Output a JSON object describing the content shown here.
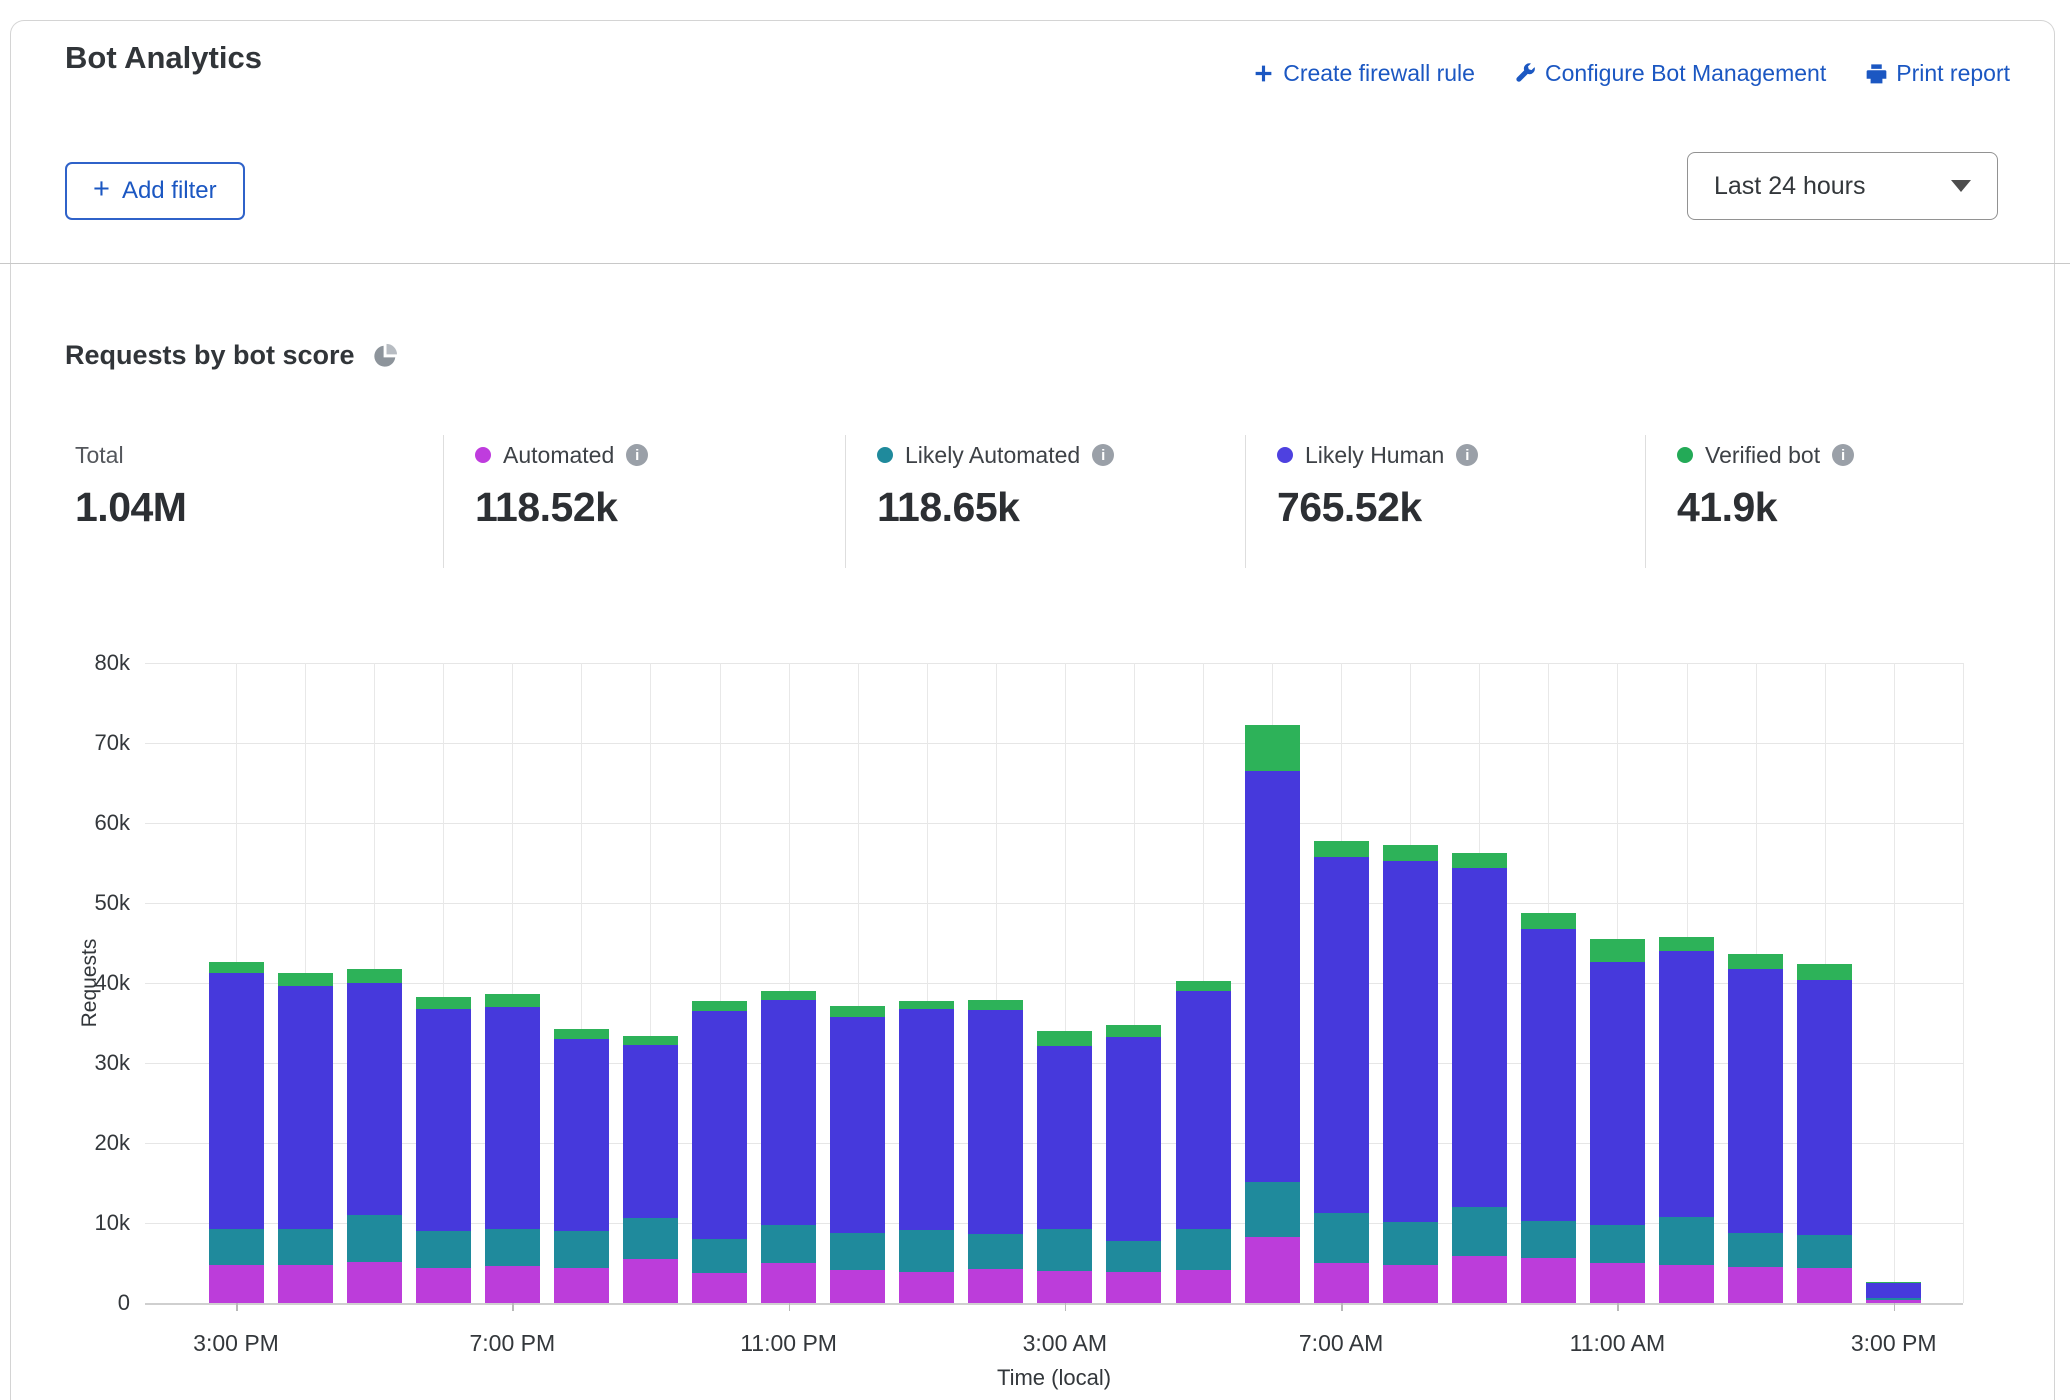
{
  "header": {
    "title": "Bot Analytics",
    "links": [
      {
        "label": "Create firewall rule",
        "icon": "plus-icon"
      },
      {
        "label": "Configure Bot Management",
        "icon": "wrench-icon"
      },
      {
        "label": "Print report",
        "icon": "printer-icon"
      }
    ],
    "link_color": "#1b57c2"
  },
  "filters": {
    "add_filter_label": "Add filter",
    "time_range_value": "Last 24 hours"
  },
  "section": {
    "title": "Requests by bot score",
    "icon": "pie-chart-icon"
  },
  "stats": {
    "total_label": "Total",
    "total_value": "1.04M",
    "series": [
      {
        "key": "automated",
        "label": "Automated",
        "value": "118.52k",
        "color": "#bf3cde"
      },
      {
        "key": "likely-automated",
        "label": "Likely Automated",
        "value": "118.65k",
        "color": "#1f8a9c"
      },
      {
        "key": "likely-human",
        "label": "Likely Human",
        "value": "765.52k",
        "color": "#4e41e0"
      },
      {
        "key": "verified-bot",
        "label": "Verified bot",
        "value": "41.9k",
        "color": "#23aa57"
      }
    ]
  },
  "chart_data": {
    "type": "bar",
    "stacked": true,
    "title": "Requests by bot score",
    "xlabel": "Time (local)",
    "ylabel": "Requests",
    "unit": "thousands of requests",
    "ylim": [
      0,
      80000
    ],
    "ytick_labels": [
      "0",
      "10k",
      "20k",
      "30k",
      "40k",
      "50k",
      "60k",
      "70k",
      "80k"
    ],
    "grid": true,
    "categories": [
      "3:00 PM",
      "4:00 PM",
      "5:00 PM",
      "6:00 PM",
      "7:00 PM",
      "8:00 PM",
      "9:00 PM",
      "10:00 PM",
      "11:00 PM",
      "12:00 AM",
      "1:00 AM",
      "2:00 AM",
      "3:00 AM",
      "4:00 AM",
      "5:00 AM",
      "6:00 AM",
      "7:00 AM",
      "8:00 AM",
      "9:00 AM",
      "10:00 AM",
      "11:00 AM",
      "12:00 PM",
      "1:00 PM",
      "2:00 PM",
      "3:00 PM"
    ],
    "xtick_shown_every": 4,
    "series": [
      {
        "name": "Automated",
        "color": "#bc3dda",
        "values_k": [
          4.7,
          4.8,
          5.1,
          4.4,
          4.6,
          4.4,
          5.5,
          3.8,
          5.0,
          4.1,
          3.9,
          4.2,
          4.0,
          3.9,
          4.1,
          8.3,
          5.0,
          4.8,
          5.9,
          5.6,
          5.0,
          4.8,
          4.5,
          4.4,
          0.35
        ]
      },
      {
        "name": "Likely Automated",
        "color": "#1f8a9c",
        "values_k": [
          4.5,
          4.5,
          5.9,
          4.6,
          4.6,
          4.6,
          5.1,
          4.2,
          4.7,
          4.7,
          5.2,
          4.4,
          5.2,
          3.9,
          5.2,
          6.8,
          6.2,
          5.3,
          6.1,
          4.6,
          4.7,
          6.0,
          4.3,
          4.1,
          0.3
        ]
      },
      {
        "name": "Likely Human",
        "color": "#4639dc",
        "values_k": [
          32.0,
          30.3,
          29.0,
          27.7,
          27.8,
          24.0,
          21.7,
          28.5,
          28.2,
          27.0,
          27.6,
          28.0,
          22.9,
          25.5,
          29.7,
          51.4,
          44.6,
          45.1,
          42.4,
          36.6,
          32.9,
          33.2,
          33.0,
          31.9,
          1.9
        ]
      },
      {
        "name": "Verified bot",
        "color": "#2db259",
        "values_k": [
          1.4,
          1.7,
          1.7,
          1.6,
          1.6,
          1.3,
          1.1,
          1.2,
          1.1,
          1.3,
          1.1,
          1.3,
          1.9,
          1.4,
          1.3,
          5.8,
          1.9,
          2.0,
          1.9,
          2.0,
          2.9,
          1.8,
          1.8,
          2.0,
          0.05
        ]
      }
    ]
  }
}
